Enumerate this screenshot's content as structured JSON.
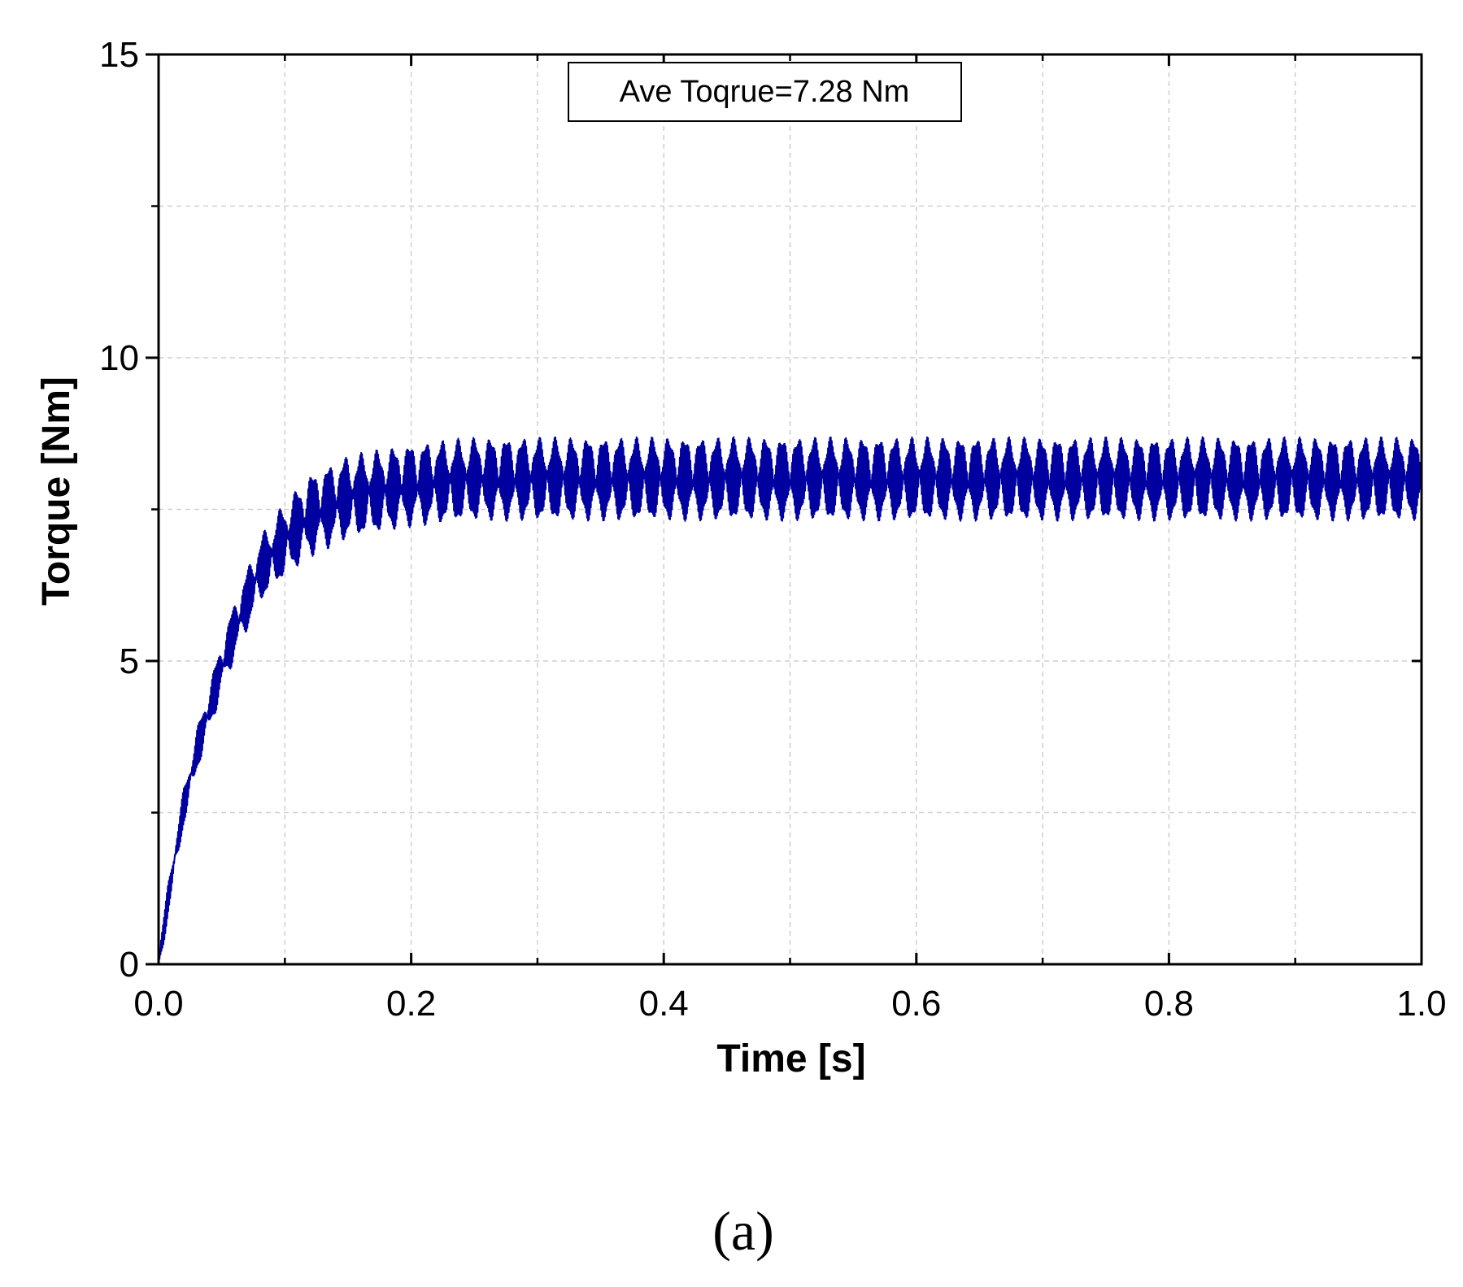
{
  "chart_data": {
    "type": "line",
    "xlabel": "Time [s]",
    "ylabel": "Torque [Nm]",
    "xlim": [
      0.0,
      1.0
    ],
    "ylim": [
      0,
      15
    ],
    "xticks": [
      "0.0",
      "0.2",
      "0.4",
      "0.6",
      "0.8",
      "1.0"
    ],
    "xtick_values": [
      0.0,
      0.2,
      0.4,
      0.6,
      0.8,
      1.0
    ],
    "xminor_values": [
      0.1,
      0.3,
      0.5,
      0.7,
      0.9
    ],
    "yticks": [
      "0",
      "5",
      "10",
      "15"
    ],
    "ytick_values": [
      0,
      5,
      10,
      15
    ],
    "yminor_values": [
      2.5,
      7.5,
      12.5
    ],
    "grid": true,
    "annotation": "Ave Toqrue=7.28 Nm",
    "line_color": "#0000a0",
    "series": [
      {
        "x": [
          0.0,
          0.01,
          0.02,
          0.03,
          0.04,
          0.05,
          0.06,
          0.07,
          0.08,
          0.1,
          0.12,
          0.15,
          0.2,
          0.25,
          0.3,
          0.4,
          0.5,
          0.6,
          0.7,
          0.8,
          0.9,
          1.0
        ],
        "y": [
          0.0,
          1.4,
          2.6,
          3.5,
          4.2,
          4.9,
          5.5,
          6.0,
          6.5,
          7.0,
          7.4,
          7.7,
          7.9,
          8.0,
          8.0,
          8.0,
          8.0,
          8.0,
          8.0,
          8.0,
          8.0,
          8.0
        ],
        "ripple_amplitude_nm": 0.62
      }
    ]
  },
  "caption": "(a)"
}
